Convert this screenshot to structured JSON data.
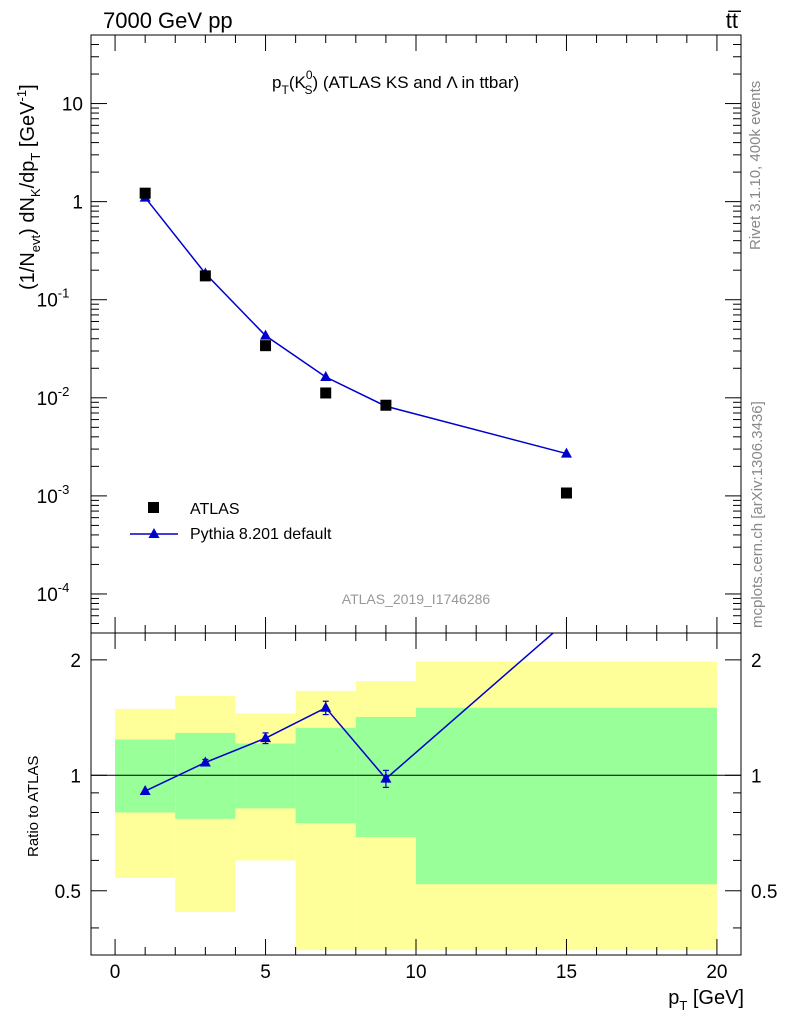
{
  "header": {
    "left": "7000 GeV pp",
    "right": "tt̅"
  },
  "side_text": {
    "top": "Rivet 3.1.10,  400k events",
    "bottom": "mcplots.cern.ch [arXiv:1306.3436]"
  },
  "chart_data": [
    {
      "type": "scatter",
      "title": "pT(K0S) (ATLAS KS and Λ in ttbar)",
      "title_parts": {
        "p": "p",
        "T": "T",
        "open": "(K",
        "sup": "0",
        "sub": "S",
        "rest": ") (ATLAS KS and Λ in ttbar)"
      },
      "ylabel": "(1/Nevt) dNK/dpT [GeV-1]",
      "ylabel_parts": {
        "a": "(1/N",
        "evt": "evt",
        "b": ") dN",
        "K": "K",
        "c": "/dp",
        "T": "T",
        "d": " [GeV",
        "sup": "-1",
        "e": "]"
      },
      "y_scale": "log",
      "ylim": [
        4e-05,
        50
      ],
      "y_ticks": [
        "10^-4",
        "10^-3",
        "10^-2",
        "10^-1",
        "1",
        "10"
      ],
      "xlim": [
        -0.8,
        20.8
      ],
      "legend": "bottom-left",
      "watermark": "ATLAS_2019_I1746286",
      "series": [
        {
          "name": "ATLAS",
          "marker": "square",
          "color": "#000000",
          "x": [
            1,
            3,
            5,
            7,
            9,
            15
          ],
          "y": [
            1.22,
            0.175,
            0.034,
            0.0112,
            0.0084,
            0.00107
          ]
        },
        {
          "name": "Pythia 8.201 default",
          "marker": "triangle",
          "line": true,
          "color": "#0000cc",
          "x": [
            1,
            3,
            5,
            7,
            9,
            15
          ],
          "y": [
            1.1,
            0.185,
            0.043,
            0.0163,
            0.0082,
            0.0027
          ]
        }
      ]
    },
    {
      "type": "line",
      "ylabel": "Ratio to ATLAS",
      "xlabel": "pT [GeV]",
      "xlabel_parts": {
        "p": "p",
        "T": "T",
        "unit": " [GeV]"
      },
      "y_scale": "log",
      "ylim": [
        0.34,
        2.35
      ],
      "y_ticks": [
        "0.5",
        "1",
        "2"
      ],
      "x_ticks": [
        "0",
        "5",
        "10",
        "15",
        "20"
      ],
      "xlim": [
        -0.8,
        20.8
      ],
      "reference_line": 1,
      "band_outer_color": "#ffff99",
      "band_inner_color": "#99ff99",
      "bands": [
        {
          "x": [
            0,
            2
          ],
          "outer": [
            0.54,
            1.49
          ],
          "inner": [
            0.8,
            1.24
          ]
        },
        {
          "x": [
            2,
            4
          ],
          "outer": [
            0.44,
            1.61
          ],
          "inner": [
            0.77,
            1.29
          ]
        },
        {
          "x": [
            4,
            6
          ],
          "outer": [
            0.6,
            1.45
          ],
          "inner": [
            0.82,
            1.21
          ]
        },
        {
          "x": [
            6,
            8
          ],
          "outer": [
            0.35,
            1.66
          ],
          "inner": [
            0.75,
            1.33
          ]
        },
        {
          "x": [
            8,
            10
          ],
          "outer": [
            0.35,
            1.76
          ],
          "inner": [
            0.69,
            1.42
          ]
        },
        {
          "x": [
            10,
            20
          ],
          "outer": [
            0.35,
            1.98
          ],
          "inner": [
            0.52,
            1.5
          ]
        }
      ],
      "series": [
        {
          "name": "Pythia 8.201 default",
          "color": "#0000cc",
          "x": [
            1,
            3,
            5,
            7,
            9,
            15
          ],
          "y": [
            0.91,
            1.08,
            1.25,
            1.5,
            0.98,
            2.52
          ],
          "err": [
            0.0,
            0.02,
            0.04,
            0.06,
            0.05,
            0.0
          ]
        }
      ]
    }
  ]
}
